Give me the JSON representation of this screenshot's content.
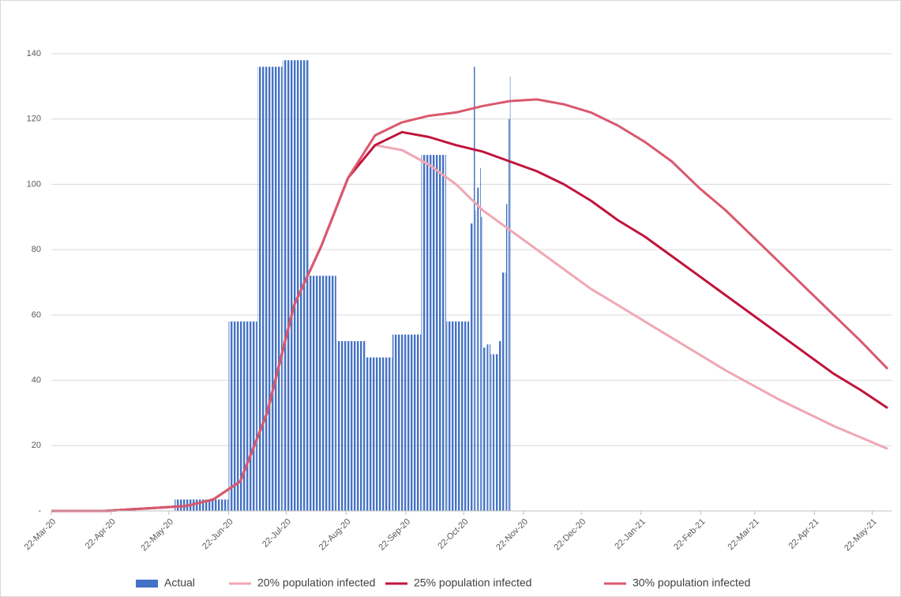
{
  "chart_data": {
    "type": "combo",
    "xlim": [
      "22-Mar-20",
      "1-Jun-21"
    ],
    "xticks": [
      "22-Mar-20",
      "22-Apr-20",
      "22-May-20",
      "22-Jun-20",
      "22-Jul-20",
      "22-Aug-20",
      "22-Sep-20",
      "22-Oct-20",
      "22-Nov-20",
      "22-Dec-20",
      "22-Jan-21",
      "22-Feb-21",
      "22-Mar-21",
      "22-Apr-21",
      "22-May-21"
    ],
    "ylim": [
      0,
      140
    ],
    "yticks": [
      {
        "value": 0,
        "label": "-"
      },
      20,
      40,
      60,
      80,
      100,
      120,
      140
    ],
    "grid": true,
    "legend": "bottom",
    "series": [
      {
        "name": "Actual",
        "type": "bar",
        "color": "#4472c4",
        "x": [
          "25-May-20",
          "22-Jun-20",
          "7-Jul-20",
          "20-Jul-20",
          "3-Aug-20",
          "17-Aug-20",
          "1-Sep-20",
          "15-Sep-20",
          "30-Sep-20",
          "13-Oct-20",
          "25-Oct-20",
          "27-Oct-20",
          "28-Oct-20",
          "29-Oct-20",
          "30-Oct-20",
          "31-Oct-20",
          "1-Nov-20",
          "3-Nov-20",
          "5-Nov-20",
          "7-Nov-20",
          "9-Nov-20",
          "11-Nov-20",
          "13-Nov-20",
          "14-Nov-20",
          "15-Nov-20"
        ],
        "values": [
          3.5,
          58,
          136,
          138,
          72,
          52,
          47,
          54,
          109,
          58,
          88,
          136,
          92,
          99,
          105,
          90,
          50,
          51,
          48,
          48,
          52,
          73,
          94,
          120,
          133
        ]
      },
      {
        "name": "20% population infected",
        "type": "line",
        "color": "#f0a7b3",
        "x": [
          "22-Mar-20",
          "5-Apr-20",
          "19-Apr-20",
          "3-May-20",
          "17-May-20",
          "31-May-20",
          "14-Jun-20",
          "28-Jun-20",
          "12-Jul-20",
          "26-Jul-20",
          "9-Aug-20",
          "23-Aug-20",
          "6-Sep-20",
          "20-Sep-20",
          "4-Oct-20",
          "18-Oct-20",
          "1-Nov-20",
          "15-Nov-20",
          "29-Nov-20",
          "13-Dec-20",
          "27-Dec-20",
          "10-Jan-21",
          "24-Jan-21",
          "7-Feb-21",
          "21-Feb-21",
          "7-Mar-21",
          "21-Mar-21",
          "4-Apr-21",
          "18-Apr-21",
          "2-May-21",
          "16-May-21",
          "30-May-21"
        ],
        "values": [
          0,
          0,
          0,
          0.5,
          1,
          1.5,
          3.5,
          9,
          30,
          63,
          81,
          102,
          112,
          110.5,
          106,
          100,
          92,
          86,
          80,
          74,
          68,
          63,
          58,
          53,
          48,
          43,
          38.5,
          34,
          30,
          26,
          22.5,
          19
        ]
      },
      {
        "name": "25% population infected",
        "type": "line",
        "color": "#c0143c",
        "x": [
          "22-Mar-20",
          "5-Apr-20",
          "19-Apr-20",
          "3-May-20",
          "17-May-20",
          "31-May-20",
          "14-Jun-20",
          "28-Jun-20",
          "12-Jul-20",
          "26-Jul-20",
          "9-Aug-20",
          "23-Aug-20",
          "6-Sep-20",
          "20-Sep-20",
          "4-Oct-20",
          "18-Oct-20",
          "1-Nov-20",
          "15-Nov-20",
          "29-Nov-20",
          "13-Dec-20",
          "27-Dec-20",
          "10-Jan-21",
          "24-Jan-21",
          "7-Feb-21",
          "21-Feb-21",
          "7-Mar-21",
          "21-Mar-21",
          "4-Apr-21",
          "18-Apr-21",
          "2-May-21",
          "16-May-21",
          "30-May-21"
        ],
        "values": [
          0,
          0,
          0,
          0.5,
          1,
          1.5,
          3.5,
          9,
          30,
          63,
          81,
          102,
          112,
          116,
          114.5,
          112,
          110,
          107,
          104,
          100,
          95,
          89,
          84,
          78,
          72,
          66,
          60,
          54,
          48,
          42,
          37,
          31.5
        ]
      },
      {
        "name": "30% population infected",
        "type": "line",
        "color": "#d9596e",
        "x": [
          "22-Mar-20",
          "5-Apr-20",
          "19-Apr-20",
          "3-May-20",
          "17-May-20",
          "31-May-20",
          "14-Jun-20",
          "28-Jun-20",
          "12-Jul-20",
          "26-Jul-20",
          "9-Aug-20",
          "23-Aug-20",
          "6-Sep-20",
          "20-Sep-20",
          "4-Oct-20",
          "18-Oct-20",
          "1-Nov-20",
          "15-Nov-20",
          "29-Nov-20",
          "13-Dec-20",
          "27-Dec-20",
          "10-Jan-21",
          "24-Jan-21",
          "7-Feb-21",
          "21-Feb-21",
          "7-Mar-21",
          "21-Mar-21",
          "4-Apr-21",
          "18-Apr-21",
          "2-May-21",
          "16-May-21",
          "30-May-21"
        ],
        "values": [
          0,
          0,
          0,
          0.5,
          1,
          1.5,
          3.5,
          9,
          30,
          63,
          81,
          102,
          115,
          119,
          121,
          122,
          124,
          125.5,
          126,
          124.5,
          122,
          118,
          113,
          107,
          99,
          92,
          84,
          76,
          68,
          60,
          52,
          43.5
        ]
      }
    ]
  }
}
